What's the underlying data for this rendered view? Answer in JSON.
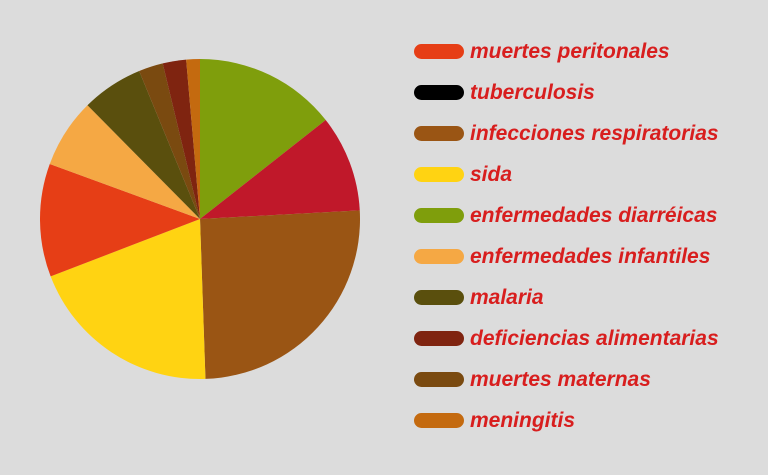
{
  "colors": {
    "background": "#dcdcdc",
    "legend_text": "#d81e1e"
  },
  "chart_data": {
    "type": "pie",
    "title": "",
    "legend_position": "right",
    "legend": [
      {
        "label": "muertes peritonales",
        "color": "#e63e16"
      },
      {
        "label": "tuberculosis",
        "color": "#000000"
      },
      {
        "label": "infecciones respiratorias",
        "color": "#9a5514"
      },
      {
        "label": "sida",
        "color": "#ffd312"
      },
      {
        "label": "enfermedades diarréicas",
        "color": "#7f9e0c"
      },
      {
        "label": "enfermedades infantiles",
        "color": "#f5a844"
      },
      {
        "label": "malaria",
        "color": "#5a4f0d"
      },
      {
        "label": "deficiencias alimentarias",
        "color": "#7f2410"
      },
      {
        "label": "muertes maternas",
        "color": "#7a4a10"
      },
      {
        "label": "meningitis",
        "color": "#c46a0f"
      }
    ],
    "slices": [
      {
        "category": "enfermedades diarréicas",
        "value": 14.6,
        "color": "#7f9e0c"
      },
      {
        "category": "",
        "value": 9.9,
        "color": "#c0182a"
      },
      {
        "category": "infecciones respiratorias",
        "value": 25.7,
        "color": "#9a5514"
      },
      {
        "category": "sida",
        "value": 20.0,
        "color": "#ffd312"
      },
      {
        "category": "muertes peritonales",
        "value": 11.6,
        "color": "#e63e16"
      },
      {
        "category": "enfermedades infantiles",
        "value": 7.1,
        "color": "#f5a844"
      },
      {
        "category": "malaria",
        "value": 6.3,
        "color": "#5a4f0d"
      },
      {
        "category": "muertes maternas",
        "value": 2.5,
        "color": "#7a4a10"
      },
      {
        "category": "deficiencias alimentarias",
        "value": 2.4,
        "color": "#7f2410"
      },
      {
        "category": "meningitis",
        "value": 1.4,
        "color": "#c46a0f"
      }
    ]
  }
}
